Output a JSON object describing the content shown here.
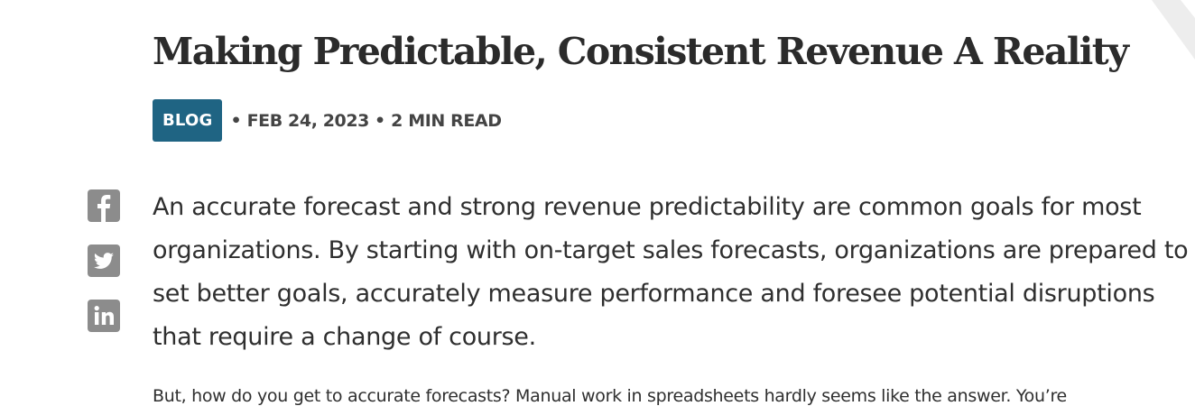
{
  "article": {
    "title": "Making Predictable, Consistent Revenue A Reality",
    "category": "BLOG",
    "separator": "•",
    "date": "FEB 24, 2023",
    "read_time": "2 MIN READ",
    "lead_lines": [
      "An accurate forecast and strong revenue predictability are common goals for most",
      "organizations. By starting with on-target sales forecasts, organizations are prepared to",
      "set better goals, accurately measure performance and foresee potential disruptions",
      "that require a change of course."
    ],
    "paragraph_2": "But, how do you get to accurate forecasts? Manual work in spreadsheets hardly seems like the answer. You’re"
  },
  "share": {
    "icons": [
      "facebook-icon",
      "twitter-icon",
      "linkedin-icon"
    ],
    "color": "#8c8c8c"
  },
  "colors": {
    "badge_bg": "#1f6483",
    "text": "#2f2f2f",
    "corner_shape": "#ededed"
  }
}
